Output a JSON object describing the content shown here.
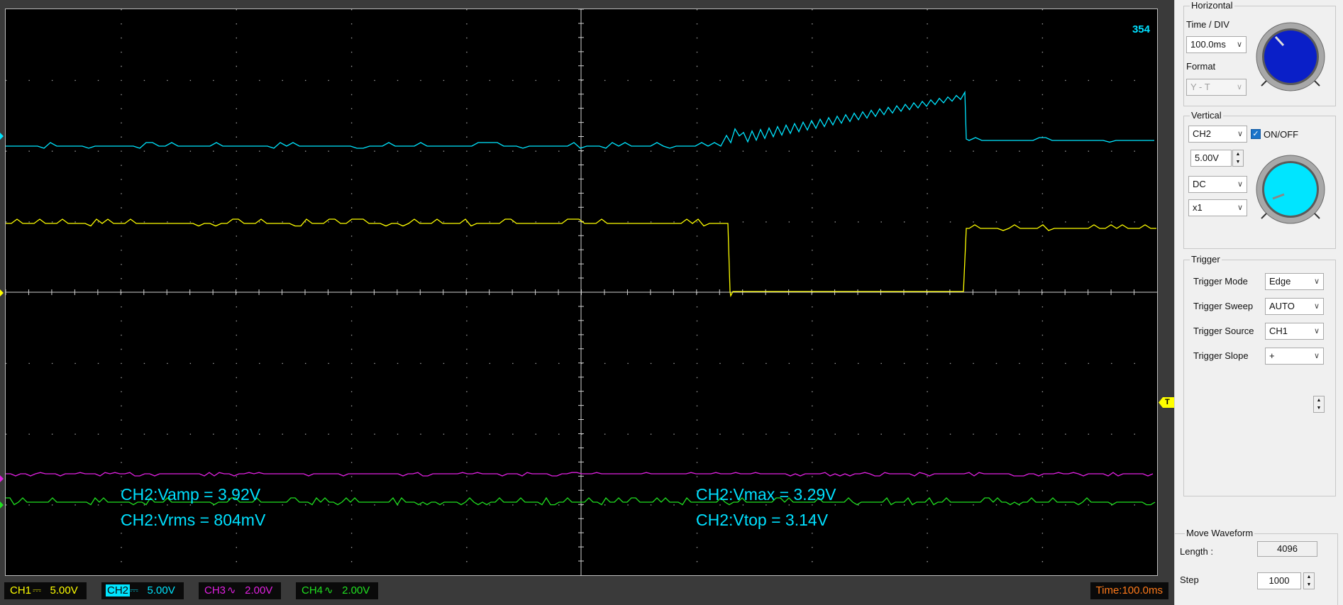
{
  "screen": {
    "counter": "354",
    "measurements": {
      "vamp": "CH2:Vamp = 3.92V",
      "vrms": "CH2:Vrms = 804mV",
      "vmax": "CH2:Vmax = 3.29V",
      "vtop": "CH2:Vtop = 3.14V"
    },
    "trigger_marker": "T"
  },
  "status_bar": {
    "channels": [
      {
        "name": "CH1",
        "coupling_icon": "dc-coupling-icon",
        "coupling_symbol": "⎓",
        "scale": "5.00V",
        "color": "#ffff00"
      },
      {
        "name": "CH2",
        "coupling_icon": "dc-coupling-icon",
        "coupling_symbol": "⎓",
        "scale": "5.00V",
        "color": "#00e5ff"
      },
      {
        "name": "CH3",
        "coupling_icon": "ac-coupling-icon",
        "coupling_symbol": "∿",
        "scale": "2.00V",
        "color": "#e020e0"
      },
      {
        "name": "CH4",
        "coupling_icon": "ac-coupling-icon",
        "coupling_symbol": "∿",
        "scale": "2.00V",
        "color": "#20e020"
      }
    ],
    "time": "Time:100.0ms"
  },
  "panel": {
    "horizontal": {
      "title": "Horizontal",
      "time_div_label": "Time / DIV",
      "time_div_value": "100.0ms",
      "format_label": "Format",
      "format_value": "Y - T",
      "knob_color": "#0a1fc8"
    },
    "vertical": {
      "title": "Vertical",
      "channel_value": "CH2",
      "onoff_label": "ON/OFF",
      "onoff_checked": true,
      "volt_value": "5.00V",
      "coupling_value": "DC",
      "probe_value": "x1",
      "knob_color": "#00e5ff"
    },
    "trigger": {
      "title": "Trigger",
      "mode_label": "Trigger Mode",
      "mode_value": "Edge",
      "sweep_label": "Trigger Sweep",
      "sweep_value": "AUTO",
      "source_label": "Trigger Source",
      "source_value": "CH1",
      "slope_label": "Trigger Slope",
      "slope_value": "+"
    },
    "move_waveform": {
      "title": "Move Waveform",
      "length_label": "Length :",
      "length_value": "4096",
      "step_label": "Step",
      "step_value": "1000"
    }
  },
  "colors": {
    "ch1": "#ffff00",
    "ch2": "#00e5ff",
    "ch3": "#e020e0",
    "ch4": "#20e020",
    "grid": "#9a9a9a",
    "time_text": "#ff7a1a"
  }
}
